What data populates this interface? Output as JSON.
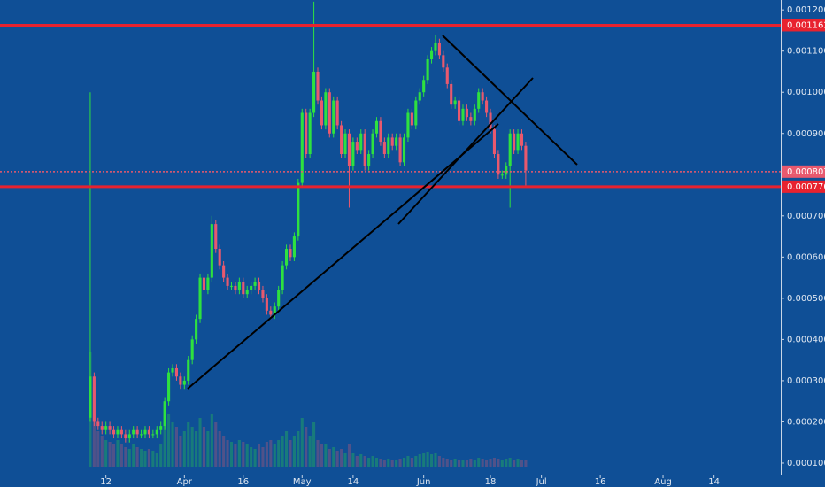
{
  "chart_data": {
    "type": "candlestick",
    "x": [
      7,
      8,
      9,
      10,
      11,
      12,
      13,
      14,
      15,
      16,
      17,
      18,
      19,
      20,
      21,
      22,
      23,
      24,
      25,
      26,
      27,
      28,
      29,
      30,
      31,
      32,
      33,
      34,
      35,
      36,
      37,
      38,
      39,
      40,
      41,
      42,
      43,
      44,
      45,
      46,
      47,
      48,
      49,
      50,
      51,
      52,
      53,
      54,
      55,
      56,
      57,
      58,
      59,
      60,
      61,
      62,
      63,
      64,
      65,
      66,
      67,
      68,
      69,
      70,
      71,
      72,
      73,
      74,
      75,
      76,
      77,
      78,
      79,
      80,
      81,
      82,
      83,
      84,
      85,
      86,
      87,
      88,
      89,
      90,
      91,
      92,
      93,
      94,
      95,
      96,
      97,
      98,
      99,
      100,
      101,
      102,
      103,
      104,
      105,
      106,
      107,
      108,
      109,
      110,
      111,
      112,
      113,
      114,
      115,
      116,
      117,
      118
    ],
    "open": [
      0.00021,
      0.00031,
      0.0002,
      0.00019,
      0.00018,
      0.00019,
      0.00018,
      0.00017,
      0.00018,
      0.00017,
      0.00016,
      0.00017,
      0.00018,
      0.00017,
      0.00017,
      0.00018,
      0.00017,
      0.00017,
      0.00018,
      0.00019,
      0.00025,
      0.00032,
      0.00033,
      0.00031,
      0.00029,
      0.0003,
      0.00035,
      0.0004,
      0.00045,
      0.00055,
      0.00052,
      0.00055,
      0.00068,
      0.00062,
      0.00058,
      0.00055,
      0.00053,
      0.00053,
      0.00052,
      0.00054,
      0.00051,
      0.00052,
      0.00053,
      0.00054,
      0.00052,
      0.0005,
      0.00047,
      0.00046,
      0.00048,
      0.00052,
      0.00058,
      0.00062,
      0.0006,
      0.00065,
      0.00078,
      0.00095,
      0.00085,
      0.00095,
      0.00105,
      0.00098,
      0.00092,
      0.001,
      0.0009,
      0.00098,
      0.00092,
      0.00085,
      0.0009,
      0.00082,
      0.00088,
      0.00086,
      0.0009,
      0.00082,
      0.00085,
      0.0009,
      0.00093,
      0.00088,
      0.00085,
      0.00089,
      0.00087,
      0.00089,
      0.00083,
      0.00089,
      0.00095,
      0.00092,
      0.00098,
      0.001,
      0.00103,
      0.00108,
      0.0011,
      0.00112,
      0.00109,
      0.00106,
      0.00102,
      0.00097,
      0.00098,
      0.00093,
      0.00096,
      0.00094,
      0.00093,
      0.00096,
      0.001,
      0.00098,
      0.00095,
      0.00091,
      0.00085,
      0.0008,
      0.0008,
      0.00082,
      0.0009,
      0.00086,
      0.0009,
      0.00087
    ],
    "high": [
      0.001,
      0.00032,
      0.00021,
      0.0002,
      0.0002,
      0.0002,
      0.00019,
      0.00019,
      0.00019,
      0.00018,
      0.00018,
      0.00019,
      0.00019,
      0.00018,
      0.00019,
      0.00019,
      0.00018,
      0.00019,
      0.0002,
      0.00026,
      0.00033,
      0.00034,
      0.00034,
      0.00032,
      0.00031,
      0.00036,
      0.00041,
      0.00046,
      0.00056,
      0.00056,
      0.00056,
      0.0007,
      0.00069,
      0.00063,
      0.00059,
      0.00056,
      0.00054,
      0.00054,
      0.00055,
      0.00055,
      0.00053,
      0.00054,
      0.00055,
      0.00055,
      0.00053,
      0.00051,
      0.00048,
      0.00049,
      0.00053,
      0.00059,
      0.00063,
      0.00063,
      0.00066,
      0.00079,
      0.00096,
      0.00096,
      0.00096,
      0.00122,
      0.00106,
      0.00099,
      0.00101,
      0.00101,
      0.00099,
      0.00099,
      0.00093,
      0.00091,
      0.00091,
      0.00089,
      0.00089,
      0.00091,
      0.00091,
      0.00086,
      0.00091,
      0.00094,
      0.00094,
      0.00089,
      0.0009,
      0.0009,
      0.0009,
      0.0009,
      0.0009,
      0.00096,
      0.00096,
      0.00099,
      0.00101,
      0.00104,
      0.00109,
      0.00111,
      0.00114,
      0.00113,
      0.0011,
      0.00107,
      0.00103,
      0.00099,
      0.00099,
      0.00097,
      0.00097,
      0.00095,
      0.00097,
      0.00101,
      0.00101,
      0.00099,
      0.00096,
      0.00092,
      0.00086,
      0.00081,
      0.00083,
      0.00091,
      0.00091,
      0.00091,
      0.00091,
      0.00088
    ],
    "low": [
      0.0002,
      0.00019,
      0.00018,
      0.00017,
      0.00017,
      0.00017,
      0.00016,
      0.00016,
      0.00016,
      0.00015,
      0.00015,
      0.00016,
      0.00016,
      0.00016,
      0.00016,
      0.00016,
      0.00016,
      0.00016,
      0.00017,
      0.00018,
      0.00024,
      0.00031,
      0.0003,
      0.00028,
      0.00028,
      0.00029,
      0.00034,
      0.00039,
      0.00044,
      0.00051,
      0.00051,
      0.00054,
      0.00061,
      0.00057,
      0.00054,
      0.00052,
      0.00052,
      0.00051,
      0.00051,
      0.0005,
      0.0005,
      0.00051,
      0.00052,
      0.00051,
      0.00049,
      0.00046,
      0.00045,
      0.00045,
      0.00047,
      0.00051,
      0.00057,
      0.00059,
      0.00059,
      0.00064,
      0.00077,
      0.00084,
      0.00084,
      0.00094,
      0.00097,
      0.00091,
      0.00091,
      0.00089,
      0.00089,
      0.00091,
      0.00084,
      0.00084,
      0.00072,
      0.00081,
      0.00085,
      0.00085,
      0.00081,
      0.00081,
      0.00084,
      0.00089,
      0.00087,
      0.00084,
      0.00084,
      0.00086,
      0.00086,
      0.00082,
      0.00082,
      0.00088,
      0.00091,
      0.00091,
      0.00097,
      0.00099,
      0.00102,
      0.00107,
      0.00109,
      0.00108,
      0.00105,
      0.00101,
      0.00096,
      0.00096,
      0.00092,
      0.00092,
      0.00093,
      0.00092,
      0.00092,
      0.00095,
      0.00097,
      0.00094,
      0.0009,
      0.00084,
      0.00079,
      0.00079,
      0.00079,
      0.00072,
      0.00085,
      0.00085,
      0.00086,
      0.00077
    ],
    "close": [
      0.00031,
      0.0002,
      0.00019,
      0.00018,
      0.00019,
      0.00018,
      0.00017,
      0.00018,
      0.00017,
      0.00016,
      0.00017,
      0.00018,
      0.00017,
      0.00017,
      0.00018,
      0.00017,
      0.00017,
      0.00018,
      0.00019,
      0.00025,
      0.00032,
      0.00033,
      0.00031,
      0.00029,
      0.0003,
      0.00035,
      0.0004,
      0.00045,
      0.00055,
      0.00052,
      0.00055,
      0.00068,
      0.00062,
      0.00058,
      0.00055,
      0.00053,
      0.00053,
      0.00052,
      0.00054,
      0.00051,
      0.00052,
      0.00053,
      0.00054,
      0.00052,
      0.0005,
      0.00047,
      0.00046,
      0.00048,
      0.00052,
      0.00058,
      0.00062,
      0.0006,
      0.00065,
      0.00078,
      0.00095,
      0.00085,
      0.00095,
      0.00105,
      0.00098,
      0.00092,
      0.001,
      0.0009,
      0.00098,
      0.00092,
      0.00085,
      0.0009,
      0.00082,
      0.00088,
      0.00086,
      0.0009,
      0.00082,
      0.00085,
      0.0009,
      0.00093,
      0.00088,
      0.00085,
      0.00089,
      0.00087,
      0.00089,
      0.00083,
      0.00089,
      0.00095,
      0.00092,
      0.00098,
      0.001,
      0.00103,
      0.00108,
      0.0011,
      0.00112,
      0.00109,
      0.00106,
      0.00102,
      0.00097,
      0.00098,
      0.00093,
      0.00096,
      0.00094,
      0.00093,
      0.00096,
      0.001,
      0.00098,
      0.00095,
      0.00091,
      0.00085,
      0.0008,
      0.0008,
      0.00082,
      0.0009,
      0.00086,
      0.0009,
      0.00087,
      0.00081
    ],
    "volume": [
      130,
      90,
      40,
      35,
      30,
      28,
      25,
      30,
      25,
      22,
      20,
      25,
      22,
      20,
      18,
      20,
      18,
      15,
      25,
      70,
      60,
      50,
      45,
      35,
      40,
      50,
      45,
      40,
      55,
      45,
      40,
      60,
      50,
      40,
      35,
      30,
      28,
      25,
      30,
      28,
      25,
      22,
      20,
      25,
      22,
      28,
      30,
      25,
      30,
      35,
      40,
      30,
      35,
      40,
      55,
      45,
      35,
      50,
      30,
      25,
      25,
      20,
      22,
      18,
      20,
      15,
      25,
      15,
      12,
      14,
      12,
      10,
      12,
      10,
      9,
      8,
      9,
      8,
      7,
      9,
      10,
      12,
      10,
      12,
      14,
      15,
      16,
      14,
      15,
      12,
      10,
      9,
      8,
      9,
      8,
      7,
      8,
      9,
      8,
      10,
      9,
      8,
      9,
      10,
      9,
      8,
      9,
      10,
      8,
      9,
      8,
      7
    ],
    "up_color": "#2ee13f",
    "down_color": "#e8596e",
    "xlim": [
      -16,
      183
    ],
    "xticks": [
      {
        "value": 11,
        "label": "12"
      },
      {
        "value": 31,
        "label": "Apr"
      },
      {
        "value": 46,
        "label": "16"
      },
      {
        "value": 61,
        "label": "May"
      },
      {
        "value": 74,
        "label": "14"
      },
      {
        "value": 92,
        "label": "Jun"
      },
      {
        "value": 109,
        "label": "18"
      },
      {
        "value": 122,
        "label": "Jul"
      },
      {
        "value": 137,
        "label": "16"
      },
      {
        "value": 153,
        "label": "Aug"
      },
      {
        "value": 166,
        "label": "14"
      }
    ],
    "ylim": [
      7.2e-05,
      0.001224
    ],
    "yticks": [
      {
        "value": 0.0012,
        "label": "0.0012000"
      },
      {
        "value": 0.0011,
        "label": "0.0011000"
      },
      {
        "value": 0.001,
        "label": "0.0010000"
      },
      {
        "value": 0.0009,
        "label": "0.0009000"
      },
      {
        "value": 0.0008,
        "label": "0.0008000"
      },
      {
        "value": 0.0007,
        "label": "0.0007000"
      },
      {
        "value": 0.0006,
        "label": "0.0006000"
      },
      {
        "value": 0.0005,
        "label": "0.0005000"
      },
      {
        "value": 0.0004,
        "label": "0.0004000"
      },
      {
        "value": 0.0003,
        "label": "0.0003000"
      },
      {
        "value": 0.0002,
        "label": "0.0002000"
      },
      {
        "value": 0.0001,
        "label": "0.0001000"
      }
    ],
    "hlines": [
      {
        "value": 0.0011628,
        "color": "#e8222f",
        "style": "solid"
      },
      {
        "value": 0.0008074,
        "color": "#e8596e",
        "style": "dotted"
      },
      {
        "value": 0.0007708,
        "color": "#e8222f",
        "style": "solid"
      }
    ]
  }
}
